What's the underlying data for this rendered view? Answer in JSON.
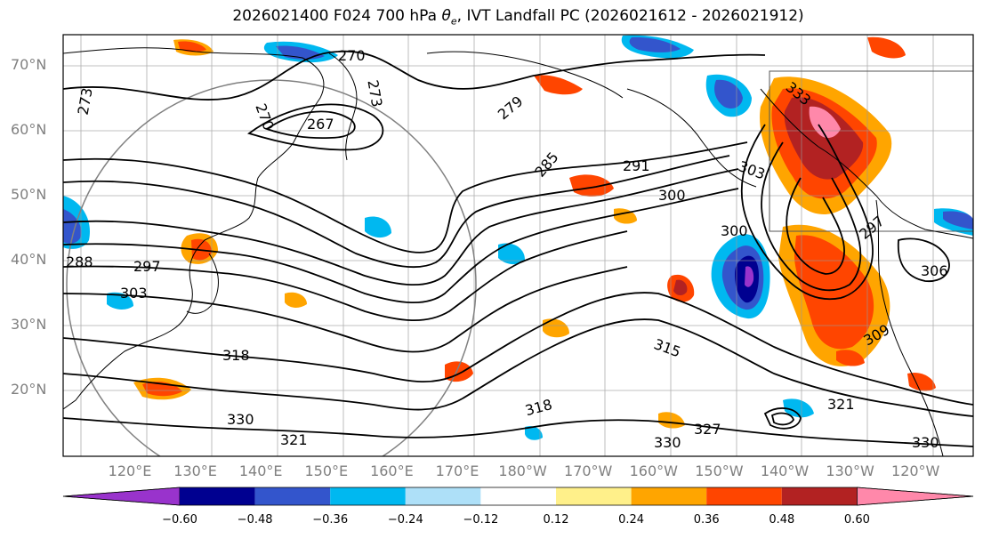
{
  "title": {
    "prefix": "2026021400 F024 700 hPa ",
    "theta": "θ",
    "sub": "e",
    "suffix": ", IVT Landfall PC (2026021612 - 2026021912)"
  },
  "map": {
    "lat_labels": [
      "70°N",
      "60°N",
      "50°N",
      "40°N",
      "30°N",
      "20°N"
    ],
    "lon_labels": [
      "120°E",
      "130°E",
      "140°E",
      "150°E",
      "160°E",
      "170°E",
      "180°W",
      "170°W",
      "160°W",
      "150°W",
      "140°W",
      "130°W",
      "120°W"
    ],
    "contour_labels": [
      "270",
      "273",
      "267",
      "270",
      "273",
      "279",
      "285",
      "291",
      "303",
      "300",
      "300",
      "297",
      "288",
      "297",
      "303",
      "306",
      "309",
      "318",
      "315",
      "318",
      "321",
      "330",
      "330",
      "327",
      "321",
      "330",
      "333"
    ]
  },
  "colorbar": {
    "colors": [
      "#9933cc",
      "#000090",
      "#3355cc",
      "#00b8f0",
      "#aee0f8",
      "#ffffff",
      "#fff08a",
      "#ffa500",
      "#ff4500",
      "#b22222",
      "#ff88aa"
    ],
    "tick_labels": [
      "−0.60",
      "−0.48",
      "−0.36",
      "−0.24",
      "−0.12",
      "0.12",
      "0.24",
      "0.36",
      "0.48",
      "0.60"
    ]
  }
}
